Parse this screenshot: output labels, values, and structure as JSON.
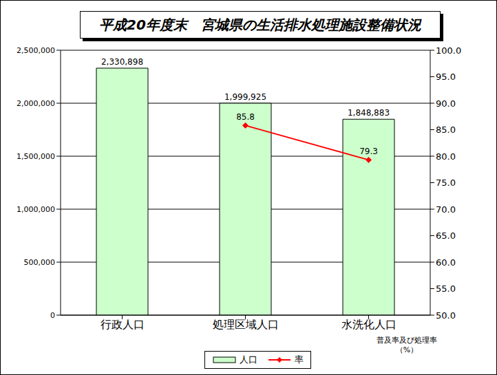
{
  "chart_data": {
    "type": "bar",
    "title": "平成20年度末　宮城県の生活排水処理施設整備状況",
    "categories": [
      "行政人口",
      "処理区域人口",
      "水洗化人口"
    ],
    "series": [
      {
        "name": "人口",
        "type": "bar",
        "color": "#ccffcc",
        "values": [
          2330898,
          1999925,
          1848883
        ],
        "value_labels": [
          "2,330,898",
          "1,999,925",
          "1,848,883"
        ]
      },
      {
        "name": "率",
        "type": "line",
        "color": "#ff0000",
        "marker": "diamond",
        "axis": "y2",
        "values": [
          null,
          85.8,
          79.3
        ]
      }
    ],
    "ylim": [
      0,
      2500000
    ],
    "yticks": [
      0,
      {
        "value": 500000,
        "label": "500,000"
      },
      {
        "value": 1000000,
        "label": "1,000,000"
      },
      {
        "value": 1500000,
        "label": "1,500,000"
      },
      {
        "value": 2000000,
        "label": "2,000,000"
      },
      {
        "value": 2500000,
        "label": "2,500,000"
      }
    ],
    "y2lim": [
      50,
      100
    ],
    "y2ticks": [
      {
        "value": 50,
        "label": "50.0"
      },
      {
        "value": 55,
        "label": "55.0"
      },
      {
        "value": 60,
        "label": "60.0"
      },
      {
        "value": 65,
        "label": "65.0"
      },
      {
        "value": 70,
        "label": "70.0"
      },
      {
        "value": 75,
        "label": "75.0"
      },
      {
        "value": 80,
        "label": "80.0"
      },
      {
        "value": 85,
        "label": "85.0"
      },
      {
        "value": 90,
        "label": "90.0"
      },
      {
        "value": 95,
        "label": "95.0"
      },
      {
        "value": 100,
        "label": "100.0"
      }
    ],
    "y2_label": "普及率及び処理率\n（%）",
    "grid": true,
    "data_labels": true,
    "legend": "bottom"
  }
}
